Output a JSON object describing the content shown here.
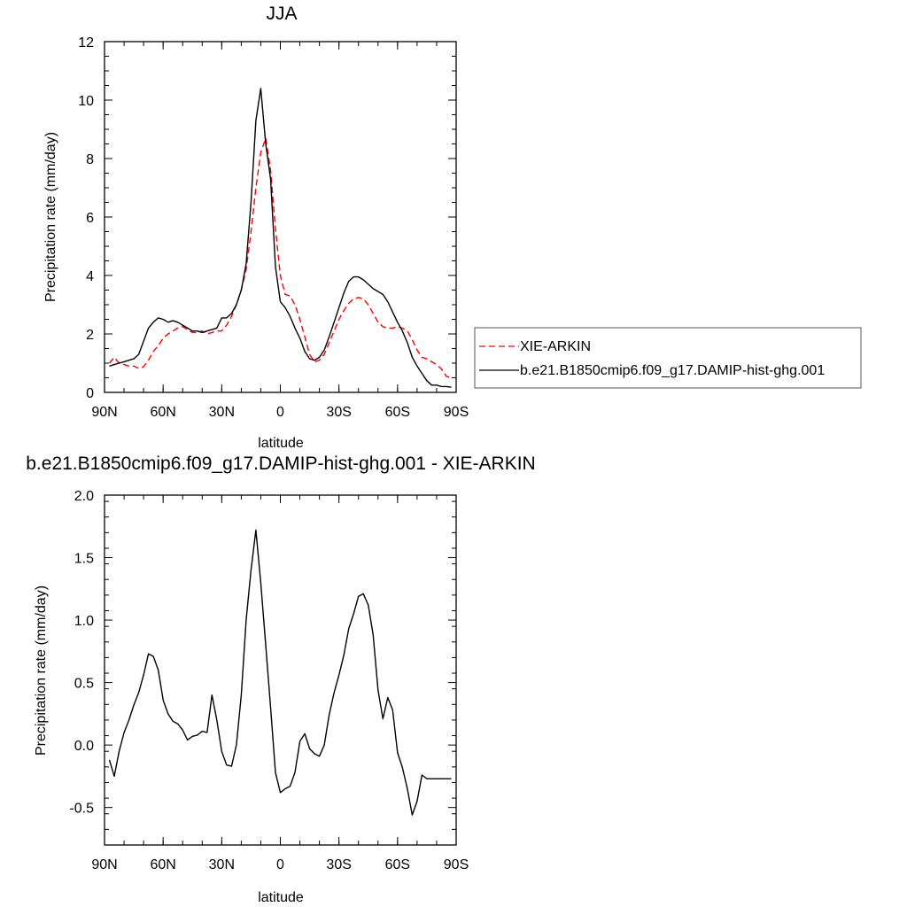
{
  "colors": {
    "obs": "#ff0000",
    "model": "#000000"
  },
  "chart_data": [
    {
      "type": "line",
      "title": "JJA",
      "xlabel": "latitude",
      "ylabel": "Precipitation rate (mm/day)",
      "xlim": [
        90,
        -90
      ],
      "ylim": [
        0,
        12
      ],
      "yticks": [
        0,
        2,
        4,
        6,
        8,
        10,
        12
      ],
      "yticklabels": [
        "0",
        "2",
        "4",
        "6",
        "8",
        "10",
        "12"
      ],
      "xticks": [
        90,
        60,
        30,
        0,
        -30,
        -60,
        -90
      ],
      "xticklabels": [
        "90N",
        "60N",
        "30N",
        "0",
        "30S",
        "60S",
        "90S"
      ],
      "legend": {
        "placement": "right-outside"
      },
      "series": [
        {
          "name": "XIE-ARKIN",
          "style": "dashed",
          "color": "#ff0000",
          "x": [
            87.5,
            85,
            82.5,
            80,
            77.5,
            75,
            72.5,
            70,
            67.5,
            65,
            62.5,
            60,
            57.5,
            55,
            52.5,
            50,
            47.5,
            45,
            42.5,
            40,
            37.5,
            35,
            32.5,
            30,
            27.5,
            25,
            22.5,
            20,
            17.5,
            15,
            12.5,
            10,
            7.5,
            5,
            2.5,
            0,
            -2.5,
            -5,
            -7.5,
            -10,
            -12.5,
            -15,
            -17.5,
            -20,
            -22.5,
            -25,
            -27.5,
            -30,
            -32.5,
            -35,
            -37.5,
            -40,
            -42.5,
            -45,
            -47.5,
            -50,
            -52.5,
            -55,
            -57.5,
            -60,
            -62.5,
            -65,
            -67.5,
            -70,
            -72.5,
            -75,
            -77.5,
            -80,
            -82.5,
            -85,
            -87.5
          ],
          "values": [
            1.0,
            1.2,
            1.0,
            0.95,
            0.9,
            0.9,
            0.82,
            0.88,
            1.1,
            1.4,
            1.6,
            1.85,
            2.0,
            2.1,
            2.2,
            2.25,
            2.15,
            2.05,
            2.05,
            2.1,
            2.0,
            2.05,
            2.1,
            2.1,
            2.3,
            2.6,
            3.0,
            3.5,
            4.2,
            5.5,
            7.0,
            8.2,
            8.7,
            7.6,
            5.6,
            4.0,
            3.35,
            3.3,
            3.0,
            2.5,
            1.9,
            1.3,
            1.05,
            1.1,
            1.3,
            1.7,
            2.1,
            2.5,
            2.8,
            3.05,
            3.2,
            3.25,
            3.2,
            3.0,
            2.7,
            2.4,
            2.25,
            2.2,
            2.2,
            2.25,
            2.2,
            2.1,
            1.8,
            1.45,
            1.2,
            1.15,
            1.05,
            0.95,
            0.8,
            0.55,
            0.5
          ]
        },
        {
          "name": "b.e21.B1850cmip6.f09_g17.DAMIP-hist-ghg.001",
          "style": "solid",
          "color": "#000000",
          "x": [
            87.5,
            85,
            82.5,
            80,
            77.5,
            75,
            72.5,
            70,
            67.5,
            65,
            62.5,
            60,
            57.5,
            55,
            52.5,
            50,
            47.5,
            45,
            42.5,
            40,
            37.5,
            35,
            32.5,
            30,
            27.5,
            25,
            22.5,
            20,
            17.5,
            15,
            12.5,
            10,
            7.5,
            5,
            2.5,
            0,
            -2.5,
            -5,
            -7.5,
            -10,
            -12.5,
            -15,
            -17.5,
            -20,
            -22.5,
            -25,
            -27.5,
            -30,
            -32.5,
            -35,
            -37.5,
            -40,
            -42.5,
            -45,
            -47.5,
            -50,
            -52.5,
            -55,
            -57.5,
            -60,
            -62.5,
            -65,
            -67.5,
            -70,
            -72.5,
            -75,
            -77.5,
            -80,
            -82.5,
            -85,
            -87.5
          ],
          "values": [
            0.9,
            0.95,
            1.0,
            1.05,
            1.1,
            1.15,
            1.3,
            1.75,
            2.2,
            2.4,
            2.55,
            2.5,
            2.4,
            2.45,
            2.4,
            2.3,
            2.2,
            2.1,
            2.1,
            2.05,
            2.1,
            2.15,
            2.2,
            2.55,
            2.55,
            2.7,
            3.0,
            3.5,
            4.4,
            6.5,
            9.3,
            10.4,
            8.5,
            7.3,
            4.3,
            3.1,
            2.9,
            2.6,
            2.2,
            1.85,
            1.4,
            1.15,
            1.1,
            1.2,
            1.45,
            1.9,
            2.4,
            2.9,
            3.4,
            3.8,
            3.95,
            3.95,
            3.85,
            3.7,
            3.55,
            3.45,
            3.35,
            3.1,
            2.75,
            2.4,
            2.1,
            1.7,
            1.2,
            0.9,
            0.65,
            0.4,
            0.25,
            0.25,
            0.2,
            0.2,
            0.18
          ]
        }
      ]
    },
    {
      "type": "line",
      "title": "b.e21.B1850cmip6.f09_g17.DAMIP-hist-ghg.001 - XIE-ARKIN",
      "xlabel": "latitude",
      "ylabel": "Precipitation rate (mm/day)",
      "xlim": [
        90,
        -90
      ],
      "ylim": [
        -0.8,
        2.0
      ],
      "yticks": [
        -0.5,
        0.0,
        0.5,
        1.0,
        1.5,
        2.0
      ],
      "yticklabels": [
        "-0.5",
        "0.0",
        "0.5",
        "1.0",
        "1.5",
        "2.0"
      ],
      "xticks": [
        90,
        60,
        30,
        0,
        -30,
        -60,
        -90
      ],
      "xticklabels": [
        "90N",
        "60N",
        "30N",
        "0",
        "30S",
        "60S",
        "90S"
      ],
      "series": [
        {
          "style": "solid",
          "color": "#000000",
          "x": [
            87.5,
            85,
            82.5,
            80,
            77.5,
            75,
            72.5,
            70,
            67.5,
            65,
            62.5,
            60,
            57.5,
            55,
            52.5,
            50,
            47.5,
            45,
            42.5,
            40,
            37.5,
            35,
            32.5,
            30,
            27.5,
            25,
            22.5,
            20,
            17.5,
            15,
            12.5,
            10,
            7.5,
            5,
            2.5,
            0,
            -2.5,
            -5,
            -7.5,
            -10,
            -12.5,
            -15,
            -17.5,
            -20,
            -22.5,
            -25,
            -27.5,
            -30,
            -32.5,
            -35,
            -37.5,
            -40,
            -42.5,
            -45,
            -47.5,
            -50,
            -52.5,
            -55,
            -57.5,
            -60,
            -62.5,
            -65,
            -67.5,
            -70,
            -72.5,
            -75,
            -77.5,
            -80,
            -82.5,
            -85,
            -87.5
          ],
          "values": [
            -0.12,
            -0.25,
            -0.05,
            0.1,
            0.2,
            0.32,
            0.42,
            0.56,
            0.73,
            0.71,
            0.6,
            0.36,
            0.25,
            0.19,
            0.17,
            0.12,
            0.04,
            0.07,
            0.08,
            0.11,
            0.1,
            0.4,
            0.2,
            -0.05,
            -0.16,
            -0.17,
            0.0,
            0.4,
            1.0,
            1.4,
            1.72,
            1.3,
            0.8,
            0.3,
            -0.22,
            -0.38,
            -0.35,
            -0.33,
            -0.22,
            0.03,
            0.09,
            -0.03,
            -0.07,
            -0.09,
            0.0,
            0.24,
            0.42,
            0.56,
            0.72,
            0.93,
            1.05,
            1.19,
            1.21,
            1.12,
            0.88,
            0.44,
            0.21,
            0.38,
            0.28,
            -0.06,
            -0.18,
            -0.35,
            -0.56,
            -0.45,
            -0.24,
            -0.27,
            -0.27,
            -0.27,
            -0.27,
            -0.27,
            -0.27
          ]
        }
      ]
    }
  ]
}
